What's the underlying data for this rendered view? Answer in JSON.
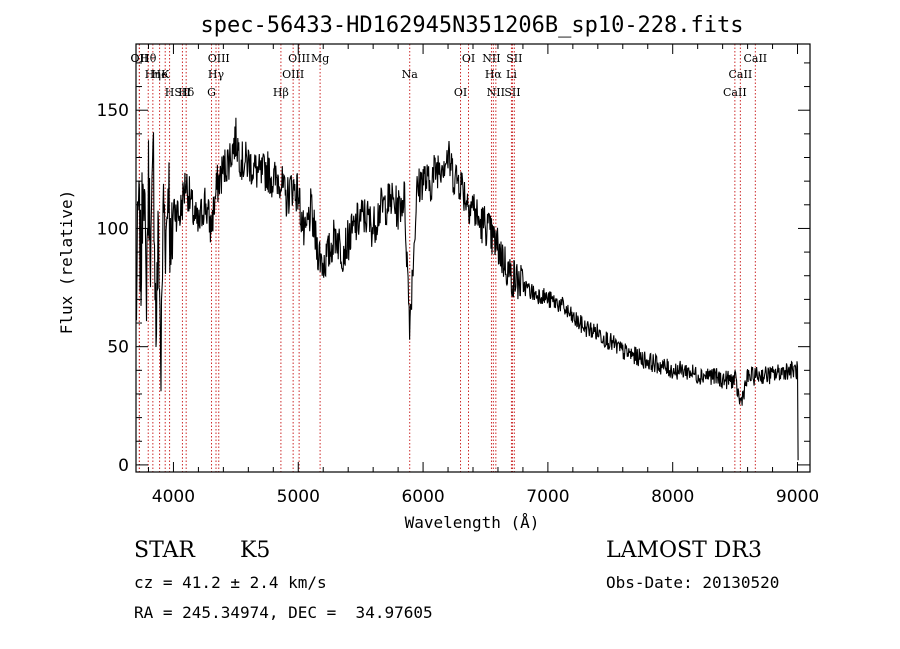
{
  "chart_data": {
    "type": "line",
    "title": "spec-56433-HD162945N351206B_sp10-228.fits",
    "xlabel": "Wavelength (Å)",
    "ylabel": "Flux (relative)",
    "xlim": [
      3700,
      9100
    ],
    "ylim": [
      -3,
      178
    ],
    "x_ticks": [
      4000,
      5000,
      6000,
      7000,
      8000,
      9000
    ],
    "y_ticks": [
      0,
      50,
      100,
      150
    ],
    "line_color": "#000000",
    "marker_color": "#cc2a2a",
    "series": [
      {
        "x": [
          3700,
          3720,
          3740,
          3760,
          3780,
          3800,
          3820,
          3840,
          3860,
          3880,
          3900,
          3920,
          3940,
          3960,
          3980,
          4000,
          4050,
          4100,
          4150,
          4200,
          4250,
          4300,
          4350,
          4400,
          4450,
          4500,
          4550,
          4600,
          4650,
          4700,
          4750,
          4800,
          4850,
          4900,
          4950,
          5000,
          5050,
          5100,
          5150,
          5200,
          5250,
          5300,
          5350,
          5400,
          5450,
          5500,
          5550,
          5600,
          5650,
          5700,
          5750,
          5800,
          5850,
          5893,
          5950,
          6000,
          6050,
          6100,
          6150,
          6200,
          6250,
          6300,
          6350,
          6400,
          6450,
          6500,
          6550,
          6600,
          6650,
          6700,
          6750,
          6800,
          6850,
          6900,
          6950,
          7000,
          7100,
          7200,
          7300,
          7400,
          7500,
          7600,
          7700,
          7800,
          7900,
          8000,
          8100,
          8200,
          8300,
          8400,
          8500,
          8542,
          8600,
          8700,
          8800,
          8900,
          9000
        ],
        "y": [
          60,
          110,
          80,
          135,
          70,
          120,
          90,
          130,
          55,
          100,
          40,
          115,
          95,
          125,
          80,
          110,
          105,
          120,
          108,
          100,
          112,
          100,
          118,
          125,
          130,
          138,
          128,
          128,
          125,
          122,
          125,
          120,
          122,
          112,
          118,
          115,
          95,
          108,
          92,
          85,
          90,
          98,
          90,
          95,
          100,
          105,
          105,
          100,
          108,
          110,
          112,
          108,
          114,
          60,
          115,
          122,
          118,
          125,
          128,
          130,
          122,
          120,
          112,
          110,
          102,
          102,
          96,
          92,
          86,
          80,
          78,
          76,
          74,
          72,
          72,
          70,
          68,
          62,
          58,
          56,
          52,
          48,
          46,
          44,
          42,
          40,
          40,
          38,
          38,
          36,
          36,
          26,
          37,
          38,
          38,
          40,
          40
        ]
      }
    ],
    "line_labels": [
      {
        "text": "Hθ",
        "x": 3798
      },
      {
        "text": "K",
        "x": 3934
      },
      {
        "text": "Hδ",
        "x": 4102
      },
      {
        "text": "OII",
        "x": 3727
      },
      {
        "text": "He",
        "x": 3889
      },
      {
        "text": "SII",
        "x": 4072
      },
      {
        "text": "OII",
        "x": 3727
      },
      {
        "text": "Hη",
        "x": 3835
      },
      {
        "text": "H",
        "x": 3969
      },
      {
        "text": "OIII",
        "x": 4363
      },
      {
        "text": "Hγ",
        "x": 4341
      },
      {
        "text": "G",
        "x": 4305
      },
      {
        "text": "OIII",
        "x": 5007
      },
      {
        "text": "OIII",
        "x": 4959
      },
      {
        "text": "Hβ",
        "x": 4861
      },
      {
        "text": "Mg",
        "x": 5175
      },
      {
        "text": "Na",
        "x": 5893
      },
      {
        "text": "OI",
        "x": 6300
      },
      {
        "text": "OI",
        "x": 6364
      },
      {
        "text": "Hα",
        "x": 6563
      },
      {
        "text": "SII",
        "x": 6716
      },
      {
        "text": "NII",
        "x": 6548
      },
      {
        "text": "Li",
        "x": 6708
      },
      {
        "text": "NII",
        "x": 6583
      },
      {
        "text": "SII",
        "x": 6731
      },
      {
        "text": "CaII",
        "x": 8542
      },
      {
        "text": "CaII",
        "x": 8498
      },
      {
        "text": "CaII",
        "x": 8662
      }
    ]
  },
  "info": {
    "object_type": "STAR",
    "subclass": "K5",
    "cz": "cz = 41.2 ± 2.4 km/s",
    "coords": "RA = 245.34974, DEC =  34.97605",
    "survey": "LAMOST DR3",
    "obs_date": "Obs-Date: 20130520"
  }
}
